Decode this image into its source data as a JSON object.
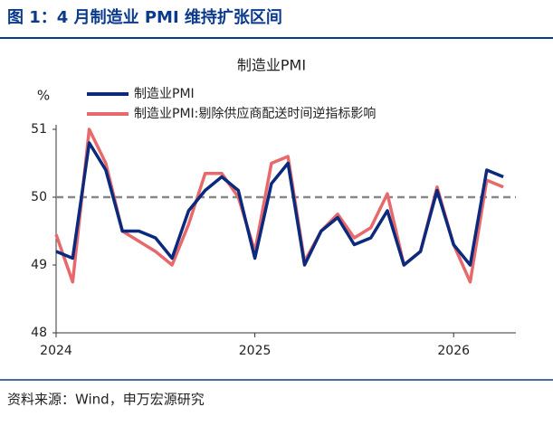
{
  "header": {
    "title": "图 1：4 月制造业 PMI 维持扩张区间"
  },
  "chart_data": {
    "type": "line",
    "title": "制造业PMI",
    "ylabel": "%",
    "categories": [
      "2024",
      null,
      null,
      null,
      null,
      null,
      null,
      null,
      null,
      null,
      null,
      null,
      "2025",
      null,
      null,
      null,
      null,
      null,
      null,
      null,
      null,
      null,
      null,
      null,
      "2026",
      null,
      null,
      null
    ],
    "series": [
      {
        "name": "制造业PMI",
        "color": "#0b2a7d",
        "values": [
          49.2,
          49.1,
          50.8,
          50.4,
          49.5,
          49.5,
          49.4,
          49.1,
          49.8,
          50.1,
          50.3,
          50.1,
          49.1,
          50.2,
          50.5,
          49.0,
          49.5,
          49.7,
          49.3,
          49.4,
          49.8,
          49.0,
          49.2,
          50.1,
          49.3,
          49.0,
          50.4,
          50.3
        ]
      },
      {
        "name": "制造业PMI:剔除供应商配送时间逆指标影响",
        "color": "#e8696b",
        "values": [
          49.45,
          48.75,
          51.0,
          50.5,
          49.5,
          49.35,
          49.2,
          49.0,
          49.6,
          50.35,
          50.35,
          50.0,
          49.2,
          50.5,
          50.6,
          49.05,
          49.5,
          49.75,
          49.4,
          49.55,
          50.05,
          49.0,
          49.2,
          50.15,
          49.3,
          48.75,
          50.25,
          50.15
        ]
      }
    ],
    "ylim": [
      48,
      51
    ],
    "yticks": [
      48,
      49,
      50,
      51
    ],
    "reference_line": 50,
    "legend": "upper left"
  },
  "footer": {
    "source": "资料来源：Wind，申万宏源研究"
  }
}
